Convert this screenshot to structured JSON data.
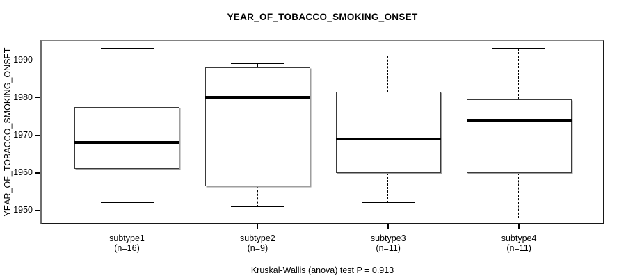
{
  "title": "YEAR_OF_TOBACCO_SMOKING_ONSET",
  "caption": "Kruskal-Wallis (anova) test P = 0.913",
  "colors": {
    "background": "#ffffff",
    "line": "#000000",
    "box_fill": "#ffffff",
    "box_outline": "#3a3a3a",
    "box_shadow": "#9e9e9e",
    "frame_light": "#828282",
    "frame_dark": "#171717"
  },
  "chart_data": {
    "type": "boxplot",
    "title": "YEAR_OF_TOBACCO_SMOKING_ONSET",
    "ylabel": "YEAR_OF_TOBACCO_SMOKING_ONSET",
    "xlabel": "",
    "grid": false,
    "legend": "none",
    "ylim": [
      1946.3,
      1995.4
    ],
    "y_ticks": [
      1990,
      1980,
      1970,
      1960,
      1950
    ],
    "categories": [
      "subtype1",
      "subtype2",
      "subtype3",
      "subtype4"
    ],
    "sample_sizes": [
      "(n=16)",
      "(n=9)",
      "(n=11)",
      "(n=11)"
    ],
    "series": [
      {
        "name": "subtype1",
        "n": 16,
        "whisker_low": 1952,
        "q1": 1961,
        "median": 1968,
        "q3": 1977.5,
        "whisker_high": 1993
      },
      {
        "name": "subtype2",
        "n": 9,
        "whisker_low": 1951,
        "q1": 1956.5,
        "median": 1980,
        "q3": 1988,
        "whisker_high": 1989
      },
      {
        "name": "subtype3",
        "n": 11,
        "whisker_low": 1952,
        "q1": 1960,
        "median": 1969,
        "q3": 1981.5,
        "whisker_high": 1991
      },
      {
        "name": "subtype4",
        "n": 11,
        "whisker_low": 1948,
        "q1": 1960,
        "median": 1974,
        "q3": 1979.5,
        "whisker_high": 1993
      }
    ],
    "annotation": "Kruskal-Wallis (anova) test P = 0.913"
  }
}
